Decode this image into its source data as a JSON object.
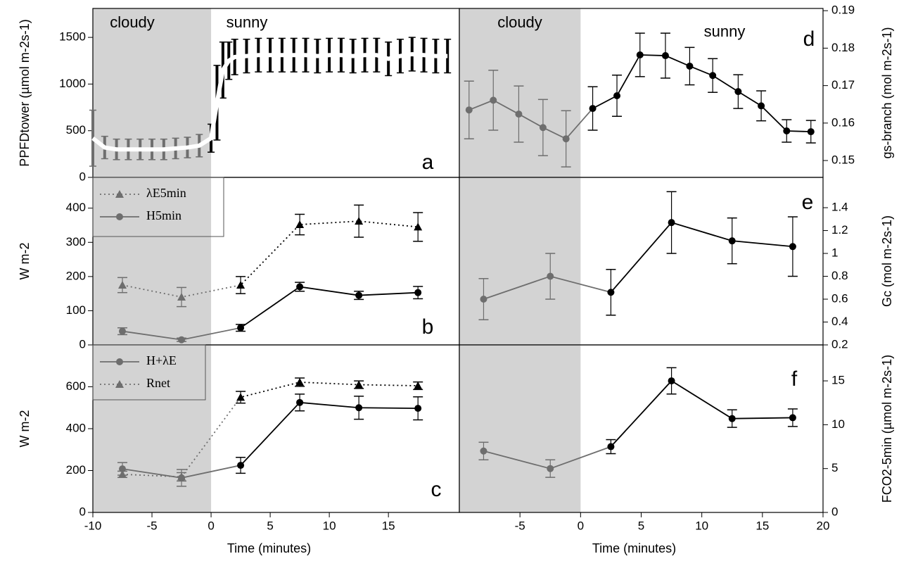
{
  "chart_data": [
    {
      "type": "line",
      "panel_label": "a",
      "ylabel": "PPFDtower (µmol m-2s-1)",
      "annotations": [
        "cloudy",
        "sunny"
      ],
      "xlim": [
        -10,
        21
      ],
      "ylim": [
        0,
        1810
      ],
      "yticks": [
        0,
        500,
        1000,
        1500
      ],
      "shade": [
        -10,
        0
      ],
      "shade_color": "#d3d3d3",
      "cloudy_color": "#6e6e6e",
      "series": [
        {
          "color": "#ffffff",
          "error_color": "#000000",
          "x": [
            -10,
            -9,
            -8,
            -7,
            -6,
            -5,
            -4,
            -3,
            -2,
            -1,
            0,
            0.5,
            1,
            1.5,
            2,
            3,
            4,
            5,
            6,
            7,
            8,
            9,
            10,
            11,
            12,
            13,
            14,
            15,
            16,
            17,
            18,
            19,
            20
          ],
          "values": [
            420,
            320,
            300,
            300,
            300,
            300,
            300,
            310,
            320,
            340,
            420,
            800,
            1150,
            1250,
            1290,
            1300,
            1310,
            1310,
            1310,
            1310,
            1310,
            1300,
            1310,
            1310,
            1300,
            1310,
            1310,
            1270,
            1300,
            1320,
            1310,
            1300,
            1300
          ],
          "errors": [
            300,
            120,
            110,
            110,
            110,
            110,
            110,
            110,
            110,
            120,
            150,
            400,
            300,
            200,
            190,
            180,
            180,
            180,
            180,
            180,
            180,
            180,
            180,
            180,
            180,
            180,
            180,
            180,
            180,
            180,
            180,
            180,
            180
          ]
        }
      ]
    },
    {
      "type": "line",
      "panel_label": "b",
      "ylabel": "W m-2",
      "legend": "upper left",
      "xlim": [
        -10,
        21
      ],
      "ylim": [
        0,
        490
      ],
      "yticks": [
        0,
        100,
        200,
        300,
        400
      ],
      "shade": [
        -10,
        0
      ],
      "shade_color": "#d3d3d3",
      "cloudy_color": "#6e6e6e",
      "series": [
        {
          "name": "λE5min",
          "color": "#000000",
          "marker": "triangle",
          "dash": true,
          "x": [
            -7.5,
            -2.5,
            2.5,
            7.5,
            12.5,
            17.5
          ],
          "values": [
            175,
            140,
            175,
            352,
            362,
            345
          ],
          "errors": [
            22,
            28,
            25,
            30,
            47,
            42
          ]
        },
        {
          "name": "H5min",
          "color": "#000000",
          "marker": "circle",
          "dash": false,
          "x": [
            -7.5,
            -2.5,
            2.5,
            7.5,
            12.5,
            17.5
          ],
          "values": [
            40,
            15,
            50,
            170,
            145,
            153
          ],
          "errors": [
            10,
            5,
            10,
            13,
            12,
            18
          ]
        }
      ]
    },
    {
      "type": "line",
      "panel_label": "c",
      "ylabel": "W m-2",
      "xlabel": "Time (minutes)",
      "legend": "upper left",
      "xlim": [
        -10,
        21
      ],
      "xticks": [
        -10,
        -5,
        0,
        5,
        10,
        15
      ],
      "ylim": [
        0,
        800
      ],
      "yticks": [
        0,
        200,
        400,
        600
      ],
      "shade": [
        -10,
        0
      ],
      "shade_color": "#d3d3d3",
      "cloudy_color": "#6e6e6e",
      "series": [
        {
          "name": "H+λE",
          "color": "#000000",
          "marker": "circle",
          "dash": false,
          "x": [
            -7.5,
            -2.5,
            2.5,
            7.5,
            12.5,
            17.5
          ],
          "values": [
            208,
            165,
            225,
            525,
            500,
            497
          ],
          "errors": [
            30,
            40,
            38,
            40,
            55,
            55
          ]
        },
        {
          "name": "Rnet",
          "color": "#000000",
          "marker": "triangle",
          "dash": true,
          "x": [
            -7.5,
            -2.5,
            2.5,
            7.5,
            12.5,
            17.5
          ],
          "values": [
            182,
            170,
            550,
            622,
            610,
            605
          ],
          "errors": [
            15,
            20,
            28,
            20,
            18,
            18
          ]
        }
      ]
    },
    {
      "type": "line",
      "panel_label": "d",
      "ylabel": "gs-branch (mol m-2s-1)",
      "annotations": [
        "cloudy",
        "sunny"
      ],
      "y_axis_side": "right",
      "xlim": [
        -10,
        20
      ],
      "ylim": [
        0.1455,
        0.1906
      ],
      "yticks": [
        0.15,
        0.16,
        0.17,
        0.18,
        0.19
      ],
      "shade": [
        -10,
        0
      ],
      "shade_color": "#d3d3d3",
      "cloudy_color": "#6e6e6e",
      "series": [
        {
          "color": "#000000",
          "marker": "circle",
          "dash": false,
          "x": [
            -9.2,
            -7.2,
            -5.1,
            -3.1,
            -1.2,
            1.0,
            3.0,
            4.9,
            7.0,
            9.0,
            10.9,
            13.0,
            14.9,
            17.0,
            19.0
          ],
          "values": [
            0.1635,
            0.1661,
            0.1624,
            0.1588,
            0.1558,
            0.1639,
            0.1673,
            0.1782,
            0.178,
            0.1752,
            0.1727,
            0.1684,
            0.1646,
            0.1579,
            0.1577
          ],
          "errors": [
            0.0077,
            0.008,
            0.0075,
            0.0075,
            0.0075,
            0.0058,
            0.0055,
            0.0058,
            0.006,
            0.005,
            0.0045,
            0.0045,
            0.004,
            0.003,
            0.003
          ]
        }
      ]
    },
    {
      "type": "line",
      "panel_label": "e",
      "ylabel": "Gc (mol m-2s-1)",
      "y_axis_side": "right",
      "xlim": [
        -10,
        20
      ],
      "ylim": [
        0.2,
        1.665
      ],
      "yticks": [
        0.2,
        0.4,
        0.6,
        0.8,
        1.0,
        1.2,
        1.4
      ],
      "shade": [
        -10,
        0
      ],
      "shade_color": "#d3d3d3",
      "cloudy_color": "#6e6e6e",
      "series": [
        {
          "color": "#000000",
          "marker": "circle",
          "dash": false,
          "x": [
            -8,
            -2.5,
            2.5,
            7.5,
            12.5,
            17.5
          ],
          "values": [
            0.6,
            0.8,
            0.66,
            1.27,
            1.11,
            1.06
          ],
          "errors": [
            0.18,
            0.2,
            0.2,
            0.27,
            0.2,
            0.26
          ]
        }
      ]
    },
    {
      "type": "line",
      "panel_label": "f",
      "ylabel": "FCO2-5min (µmol m-2s-1)",
      "xlabel": "Time (minutes)",
      "y_axis_side": "right",
      "xlim": [
        -10,
        20
      ],
      "xticks": [
        -5,
        0,
        5,
        10,
        15,
        20
      ],
      "ylim": [
        0,
        19.1
      ],
      "yticks": [
        0,
        5,
        10,
        15
      ],
      "shade": [
        -10,
        0
      ],
      "shade_color": "#d3d3d3",
      "cloudy_color": "#6e6e6e",
      "series": [
        {
          "color": "#000000",
          "marker": "circle",
          "dash": false,
          "x": [
            -8,
            -2.5,
            2.5,
            7.5,
            12.5,
            17.5
          ],
          "values": [
            7,
            5,
            7.5,
            15,
            10.7,
            10.8
          ],
          "errors": [
            1,
            1,
            0.8,
            1.5,
            1,
            1
          ]
        }
      ]
    }
  ]
}
